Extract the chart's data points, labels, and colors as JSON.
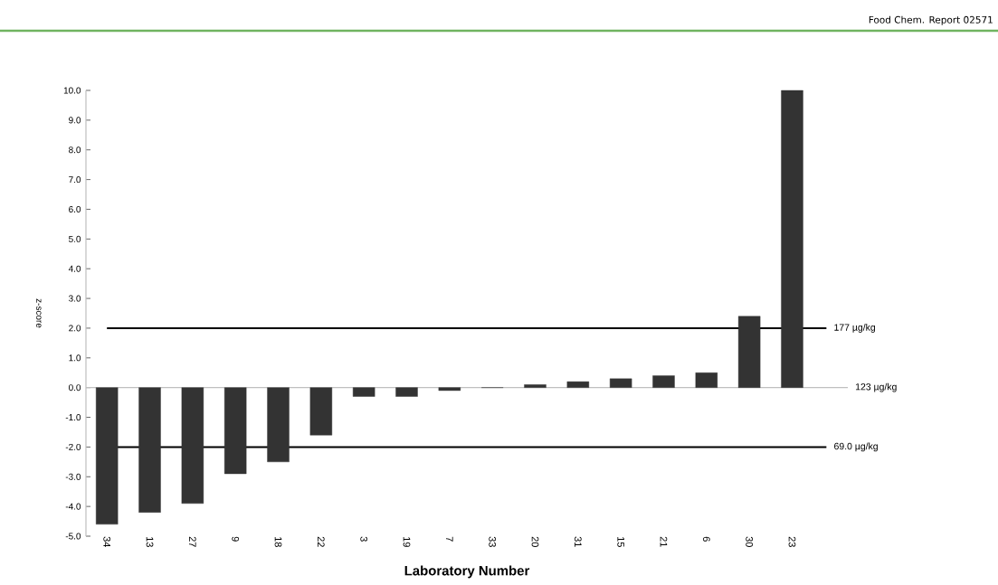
{
  "chart_data": {
    "type": "bar",
    "categories": [
      "34",
      "13",
      "27",
      "9",
      "18",
      "22",
      "3",
      "19",
      "7",
      "33",
      "20",
      "31",
      "15",
      "21",
      "6",
      "30",
      "23"
    ],
    "values": [
      -4.6,
      -4.2,
      -3.9,
      -2.9,
      -2.5,
      -1.6,
      -0.3,
      -0.3,
      -0.1,
      0.0,
      0.1,
      0.2,
      0.3,
      0.4,
      0.5,
      2.4,
      10.0
    ],
    "color": "#333333",
    "xlabel": "Laboratory Number",
    "ylabel": "z-score",
    "ylim": [
      -5,
      10
    ],
    "yticks": [
      {
        "value": -5,
        "label": "-5.0"
      },
      {
        "value": -4,
        "label": "-4.0"
      },
      {
        "value": -3,
        "label": "-3.0"
      },
      {
        "value": -2,
        "label": "-2.0"
      },
      {
        "value": -1,
        "label": "-1.0"
      },
      {
        "value": 0,
        "label": "0.0"
      },
      {
        "value": 1,
        "label": "1.0"
      },
      {
        "value": 2,
        "label": "2.0"
      },
      {
        "value": 3,
        "label": "3.0"
      },
      {
        "value": 4,
        "label": "4.0"
      },
      {
        "value": 5,
        "label": "5.0"
      },
      {
        "value": 6,
        "label": "6.0"
      },
      {
        "value": 7,
        "label": "7.0"
      },
      {
        "value": 8,
        "label": "8.0"
      },
      {
        "value": 9,
        "label": "9.0"
      },
      {
        "value": 10,
        "label": "10.0"
      }
    ],
    "ref_lines": [
      {
        "axis": "y",
        "value": 2,
        "label": "177 µg/kg",
        "color": "#000000"
      },
      {
        "axis": "y",
        "value": 0,
        "label": "123 µg/kg",
        "color": "#bfbfbf"
      },
      {
        "axis": "y",
        "value": -2,
        "label": "69.0 µg/kg",
        "color": "#000000"
      }
    ],
    "annotations": [
      "Food Chem. Report 02571"
    ]
  }
}
